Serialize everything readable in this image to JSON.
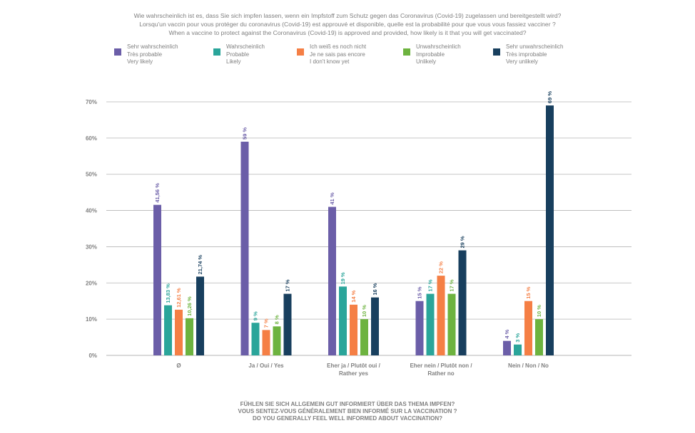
{
  "question": {
    "de": "Wie wahrscheinlich ist es, dass Sie sich impfen lassen, wenn ein Impfstoff zum Schutz gegen das Coronavirus (Covid-19) zugelassen und bereitgestellt wird?",
    "fr": "Lorsqu'un vaccin pour vous protéger du coronavirus (Covid-19) est approuvé et disponible, quelle est la probabilité pour que vous vous fassiez vacciner ?",
    "en": "When a vaccine to protect against the Coronavirus (Covid-19) is approved and provided, how likely is it that you will get vaccinated?"
  },
  "x_title": {
    "de": "FÜHLEN SIE SICH ALLGEMEIN GUT INFORMIERT ÜBER DAS THEMA IMPFEN?",
    "fr": "VOUS SENTEZ-VOUS GÉNÉRALEMENT BIEN INFORMÉ SUR LA VACCINATION ?",
    "en": "DO YOU GENERALLY FEEL WELL INFORMED ABOUT VACCINATION?"
  },
  "chart_data": {
    "type": "bar",
    "categories": [
      [
        "Ø"
      ],
      [
        "Ja / Oui / Yes"
      ],
      [
        "Eher ja / Plutôt oui /",
        "Rather yes"
      ],
      [
        "Eher nein / Plutôt non /",
        "Rather no"
      ],
      [
        "Nein / Non / No"
      ]
    ],
    "series": [
      {
        "name": [
          "Sehr wahrscheinlich",
          "Très probable",
          "Very likely"
        ],
        "color": "#6b5ea8",
        "values": [
          41.56,
          59,
          41,
          15,
          4
        ],
        "labels": [
          "41,56 %",
          "59 %",
          "41 %",
          "15 %",
          "4 %"
        ]
      },
      {
        "name": [
          "Wahrscheinlich",
          "Probable",
          "Likely"
        ],
        "color": "#2aa59a",
        "values": [
          13.83,
          9,
          19,
          17,
          3
        ],
        "labels": [
          "13,83 %",
          "9 %",
          "19 %",
          "17 %",
          "3 %"
        ]
      },
      {
        "name": [
          "Ich weiß es noch nicht",
          "Je ne sais pas encore",
          "I don't know yet"
        ],
        "color": "#f57f45",
        "values": [
          12.61,
          7,
          14,
          22,
          15
        ],
        "labels": [
          "12,61 %",
          "7 %",
          "14 %",
          "22 %",
          "15 %"
        ]
      },
      {
        "name": [
          "Unwahrscheinlich",
          "Improbable",
          "Unlikely"
        ],
        "color": "#6db33f",
        "values": [
          10.26,
          8,
          10,
          17,
          10
        ],
        "labels": [
          "10,26 %",
          "8 %",
          "10 %",
          "17 %",
          "10 %"
        ]
      },
      {
        "name": [
          "Sehr unwahrscheinlich",
          "Très improbable",
          "Very unlikely"
        ],
        "color": "#183f5e",
        "values": [
          21.74,
          17,
          16,
          29,
          69
        ],
        "labels": [
          "21,74 %",
          "17 %",
          "16 %",
          "29 %",
          "69 %"
        ]
      }
    ],
    "yticks": [
      0,
      10,
      20,
      30,
      40,
      50,
      60,
      70
    ],
    "ytick_labels": [
      "0%",
      "10%",
      "20%",
      "30%",
      "40%",
      "50%",
      "60%",
      "70%"
    ],
    "ylim": [
      0,
      70
    ],
    "grid": true,
    "legend_position": "top"
  }
}
